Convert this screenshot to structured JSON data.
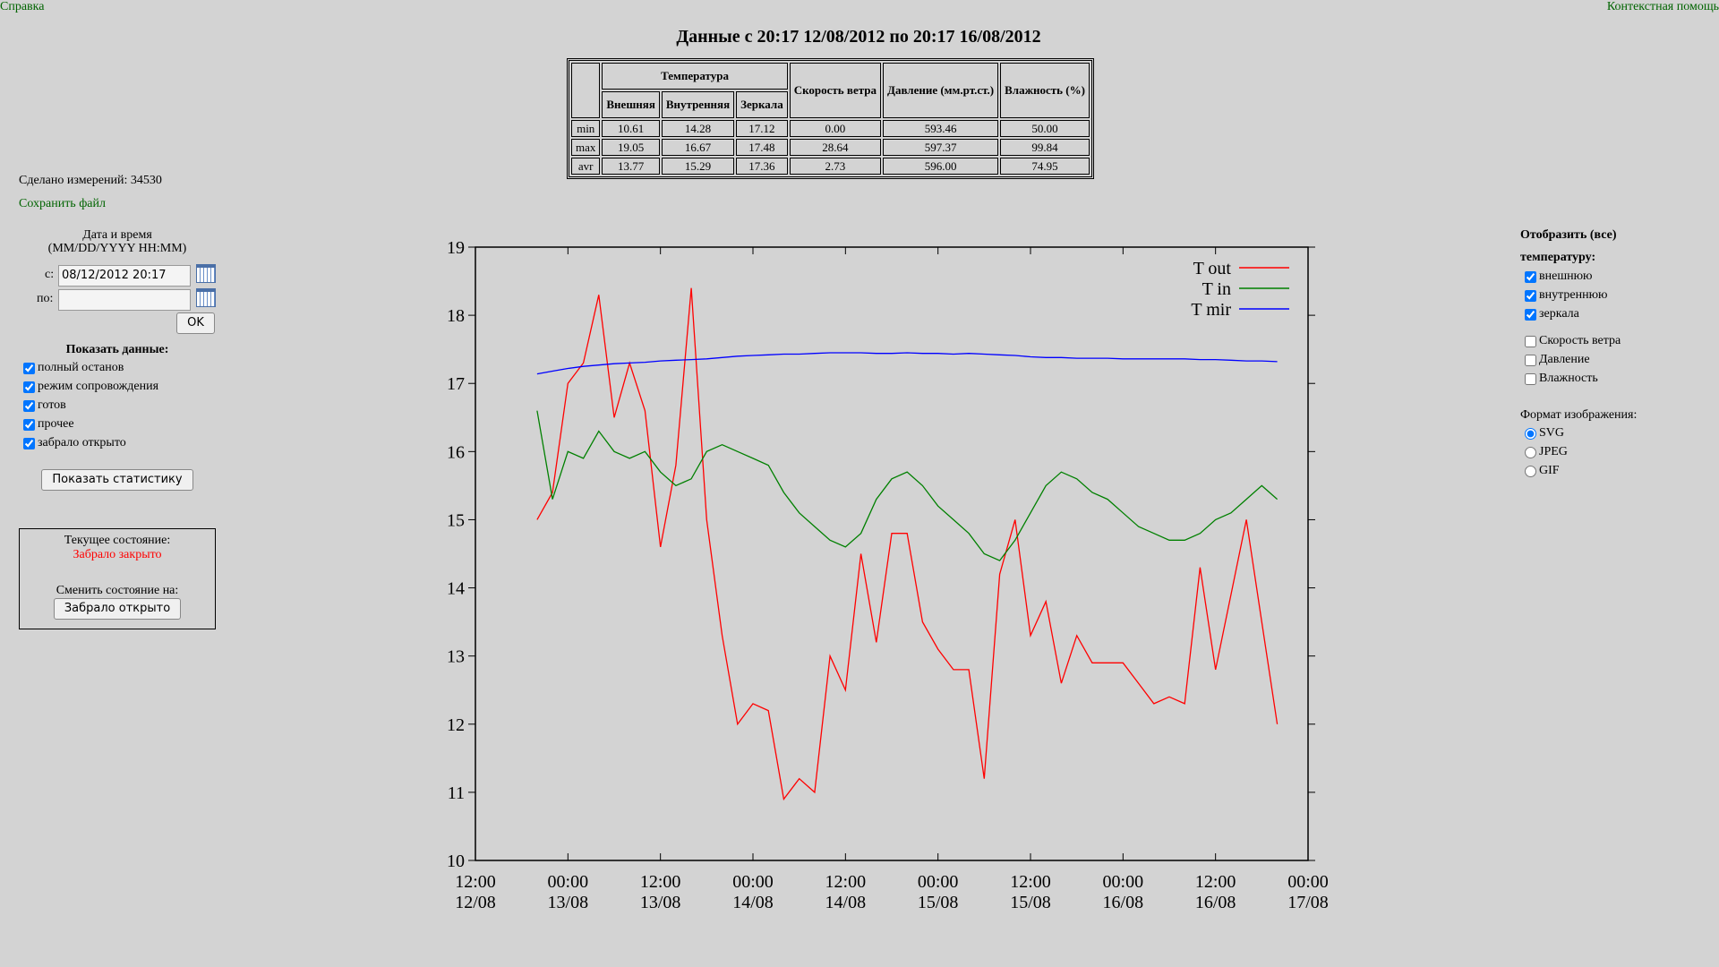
{
  "header": {
    "help": "Справка",
    "context_help": "Контекстная помощь",
    "title": "Данные с 20:17 12/08/2012 по 20:17 16/08/2012"
  },
  "stats_table": {
    "group_header": "Температура",
    "temp_columns": [
      "Внешняя",
      "Внутренняя",
      "Зеркала"
    ],
    "other_columns": [
      "Скорость ветра",
      "Давление (мм.рт.ст.)",
      "Влажность (%)"
    ],
    "rows": [
      {
        "label": "min",
        "cells": [
          "10.61",
          "14.28",
          "17.12",
          "0.00",
          "593.46",
          "50.00"
        ]
      },
      {
        "label": "max",
        "cells": [
          "19.05",
          "16.67",
          "17.48",
          "28.64",
          "597.37",
          "99.84"
        ]
      },
      {
        "label": "avr",
        "cells": [
          "13.77",
          "15.29",
          "17.36",
          "2.73",
          "596.00",
          "74.95"
        ]
      }
    ]
  },
  "left_panel": {
    "measurements": "Сделано измерений: 34530",
    "save_file": "Сохранить файл",
    "datetime_title": "Дата и время",
    "datetime_format": "(MM/DD/YYYY HH:MM)",
    "from_label": "с:",
    "from_value": "08/12/2012 20:17",
    "to_label": "по:",
    "ok": "OK",
    "show_data_title": "Показать данные:",
    "show_options": [
      "полный останов",
      "режим сопровождения",
      "готов",
      "прочее",
      "забрало открыто"
    ],
    "stats_button": "Показать статистику"
  },
  "status": {
    "current_label": "Текущее состояние:",
    "current_value": "Забрало закрыто",
    "change_label": "Сменить состояние на:",
    "change_button": "Забрало открыто"
  },
  "right_panel": {
    "display_title": "Отобразить (все)",
    "temp_title": "температуру:",
    "temp_options": [
      "внешнюю",
      "внутреннюю",
      "зеркала"
    ],
    "other_options": [
      "Скорость ветра",
      "Давление",
      "Влажность"
    ],
    "format_title": "Формат изображения:",
    "formats": [
      "SVG",
      "JPEG",
      "GIF"
    ]
  },
  "chart_data": {
    "type": "line",
    "legend": "upper right",
    "grid": false,
    "x": [
      8,
      10,
      12,
      14,
      16,
      18,
      20,
      22,
      24,
      26,
      28,
      30,
      32,
      34,
      36,
      38,
      40,
      42,
      44,
      46,
      48,
      50,
      52,
      54,
      56,
      58,
      60,
      62,
      64,
      66,
      68,
      70,
      72,
      74,
      76,
      78,
      80,
      82,
      84,
      86,
      88,
      90,
      92,
      94,
      96,
      98,
      100,
      102,
      104
    ],
    "xlim": [
      0,
      108
    ],
    "xticks": [
      {
        "value": 0,
        "label": "12:00\n12/08"
      },
      {
        "value": 12,
        "label": "00:00\n13/08"
      },
      {
        "value": 24,
        "label": "12:00\n13/08"
      },
      {
        "value": 36,
        "label": "00:00\n14/08"
      },
      {
        "value": 48,
        "label": "12:00\n14/08"
      },
      {
        "value": 60,
        "label": "00:00\n15/08"
      },
      {
        "value": 72,
        "label": "12:00\n15/08"
      },
      {
        "value": 84,
        "label": "00:00\n16/08"
      },
      {
        "value": 96,
        "label": "12:00\n16/08"
      },
      {
        "value": 108,
        "label": "00:00\n17/08"
      }
    ],
    "ylim": [
      10,
      19
    ],
    "yticks": [
      10,
      11,
      12,
      13,
      14,
      15,
      16,
      17,
      18,
      19
    ],
    "series": [
      {
        "name": "T out",
        "color": "#ff0000",
        "values": [
          15.0,
          15.4,
          17.0,
          17.3,
          18.3,
          16.5,
          17.3,
          16.6,
          14.6,
          15.8,
          18.4,
          15.0,
          13.3,
          12.0,
          12.3,
          12.2,
          10.9,
          11.2,
          11.0,
          13.0,
          12.5,
          14.5,
          13.2,
          14.8,
          14.8,
          13.5,
          13.1,
          12.8,
          12.8,
          11.2,
          14.2,
          15.0,
          13.3,
          13.8,
          12.6,
          13.3,
          12.9,
          12.9,
          12.9,
          12.6,
          12.3,
          12.4,
          12.3,
          14.3,
          12.8,
          13.9,
          15.0,
          13.5,
          12.0
        ]
      },
      {
        "name": "T in",
        "color": "#008000",
        "values": [
          16.6,
          15.3,
          16.0,
          15.9,
          16.3,
          16.0,
          15.9,
          16.0,
          15.7,
          15.5,
          15.6,
          16.0,
          16.1,
          16.0,
          15.9,
          15.8,
          15.4,
          15.1,
          14.9,
          14.7,
          14.6,
          14.8,
          15.3,
          15.6,
          15.7,
          15.5,
          15.2,
          15.0,
          14.8,
          14.5,
          14.4,
          14.7,
          15.1,
          15.5,
          15.7,
          15.6,
          15.4,
          15.3,
          15.1,
          14.9,
          14.8,
          14.7,
          14.7,
          14.8,
          15.0,
          15.1,
          15.3,
          15.5,
          15.3
        ]
      },
      {
        "name": "T mir",
        "color": "#0000ff",
        "values": [
          17.14,
          17.18,
          17.22,
          17.25,
          17.27,
          17.29,
          17.3,
          17.31,
          17.33,
          17.34,
          17.35,
          17.36,
          17.38,
          17.4,
          17.41,
          17.42,
          17.43,
          17.43,
          17.44,
          17.45,
          17.45,
          17.45,
          17.44,
          17.44,
          17.45,
          17.44,
          17.44,
          17.43,
          17.44,
          17.43,
          17.42,
          17.41,
          17.39,
          17.38,
          17.38,
          17.37,
          17.37,
          17.37,
          17.36,
          17.36,
          17.36,
          17.36,
          17.36,
          17.35,
          17.35,
          17.34,
          17.33,
          17.33,
          17.32
        ]
      }
    ]
  }
}
